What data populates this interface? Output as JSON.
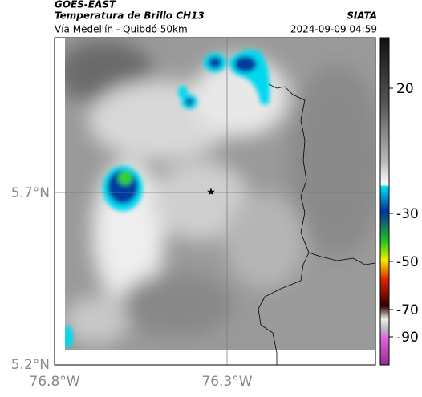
{
  "header": {
    "satellite": "GOES-EAST",
    "product": "Temperatura de Brillo CH13",
    "agency": "SIATA",
    "route": "Vía Medellín - Quibdó 50km",
    "timestamp": "2024-09-09 04:59"
  },
  "map": {
    "lat_labels": [
      "5.7°N",
      "5.2°N"
    ],
    "lon_labels": [
      "76.8°W",
      "76.3°W"
    ]
  },
  "colorbar": {
    "ticks": [
      20,
      -30,
      -50,
      -70,
      -90
    ]
  }
}
